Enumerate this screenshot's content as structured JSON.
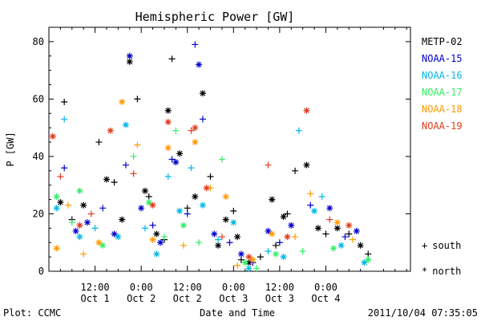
{
  "chart_data": {
    "type": "scatter",
    "title": "Hemispheric Power [GW]",
    "ylabel": "P [GW]",
    "xlabel": "Date and Time",
    "ylim": [
      0,
      85
    ],
    "y_ticks": [
      0,
      20,
      40,
      60,
      80
    ],
    "xlim": [
      "2011-10-01 00:00",
      "2011-10-04 22:00"
    ],
    "x_ticks": [
      {
        "time": "12:00",
        "date": "Oct 1",
        "at": "2011-10-01 12:00"
      },
      {
        "time": "0:00",
        "date": "Oct 2",
        "at": "2011-10-02 00:00"
      },
      {
        "time": "12:00",
        "date": "Oct 2",
        "at": "2011-10-02 12:00"
      },
      {
        "time": "0:00",
        "date": "Oct 3",
        "at": "2011-10-03 00:00"
      },
      {
        "time": "12:00",
        "date": "Oct 3",
        "at": "2011-10-03 12:00"
      },
      {
        "time": "0:00",
        "date": "Oct 4",
        "at": "2011-10-04 00:00"
      }
    ],
    "marker_legend": [
      {
        "symbol": "+",
        "label": "south"
      },
      {
        "symbol": "*",
        "label": "north"
      }
    ],
    "series": [
      {
        "name": "METP-02",
        "color": "#000000",
        "points": [
          {
            "x": "2011-10-01 03:00",
            "y": 24,
            "m": "*"
          },
          {
            "x": "2011-10-01 04:00",
            "y": 59,
            "m": "+"
          },
          {
            "x": "2011-10-01 06:00",
            "y": 18,
            "m": "+"
          },
          {
            "x": "2011-10-01 09:00",
            "y": 23,
            "m": "*"
          },
          {
            "x": "2011-10-01 13:00",
            "y": 45,
            "m": "+"
          },
          {
            "x": "2011-10-01 15:00",
            "y": 32,
            "m": "*"
          },
          {
            "x": "2011-10-01 17:00",
            "y": 31,
            "m": "+"
          },
          {
            "x": "2011-10-01 19:00",
            "y": 18,
            "m": "*"
          },
          {
            "x": "2011-10-01 21:00",
            "y": 73,
            "m": "*"
          },
          {
            "x": "2011-10-01 23:00",
            "y": 60,
            "m": "+"
          },
          {
            "x": "2011-10-02 01:00",
            "y": 28,
            "m": "*"
          },
          {
            "x": "2011-10-02 02:00",
            "y": 26,
            "m": "+"
          },
          {
            "x": "2011-10-02 04:00",
            "y": 13,
            "m": "*"
          },
          {
            "x": "2011-10-02 06:00",
            "y": 11,
            "m": "+"
          },
          {
            "x": "2011-10-02 07:00",
            "y": 56,
            "m": "*"
          },
          {
            "x": "2011-10-02 08:00",
            "y": 74,
            "m": "+"
          },
          {
            "x": "2011-10-02 10:00",
            "y": 41,
            "m": "*"
          },
          {
            "x": "2011-10-02 12:00",
            "y": 22,
            "m": "+"
          },
          {
            "x": "2011-10-02 14:00",
            "y": 26,
            "m": "*"
          },
          {
            "x": "2011-10-02 16:00",
            "y": 62,
            "m": "*"
          },
          {
            "x": "2011-10-02 18:00",
            "y": 33,
            "m": "+"
          },
          {
            "x": "2011-10-02 20:00",
            "y": 9,
            "m": "*"
          },
          {
            "x": "2011-10-02 22:00",
            "y": 18,
            "m": "*"
          },
          {
            "x": "2011-10-03 00:00",
            "y": 21,
            "m": "+"
          },
          {
            "x": "2011-10-03 01:00",
            "y": 12,
            "m": "*"
          },
          {
            "x": "2011-10-03 02:00",
            "y": 4,
            "m": "+"
          },
          {
            "x": "2011-10-03 04:00",
            "y": 3,
            "m": "*"
          },
          {
            "x": "2011-10-03 07:00",
            "y": 5,
            "m": "+"
          },
          {
            "x": "2011-10-03 10:00",
            "y": 25,
            "m": "*"
          },
          {
            "x": "2011-10-03 11:00",
            "y": 9,
            "m": "+"
          },
          {
            "x": "2011-10-03 13:00",
            "y": 19,
            "m": "*"
          },
          {
            "x": "2011-10-03 14:00",
            "y": 20,
            "m": "+"
          },
          {
            "x": "2011-10-03 16:00",
            "y": 35,
            "m": "+"
          },
          {
            "x": "2011-10-03 19:00",
            "y": 37,
            "m": "*"
          },
          {
            "x": "2011-10-03 22:00",
            "y": 15,
            "m": "*"
          },
          {
            "x": "2011-10-04 00:00",
            "y": 13,
            "m": "+"
          },
          {
            "x": "2011-10-04 03:00",
            "y": 15,
            "m": "*"
          },
          {
            "x": "2011-10-04 06:00",
            "y": 13,
            "m": "+"
          },
          {
            "x": "2011-10-04 09:00",
            "y": 9,
            "m": "*"
          },
          {
            "x": "2011-10-04 11:00",
            "y": 6,
            "m": "+"
          }
        ]
      },
      {
        "name": "NOAA-15",
        "color": "#0000cc",
        "points": [
          {
            "x": "2011-10-01 04:00",
            "y": 36,
            "m": "+"
          },
          {
            "x": "2011-10-01 07:00",
            "y": 14,
            "m": "*"
          },
          {
            "x": "2011-10-01 10:00",
            "y": 17,
            "m": "*"
          },
          {
            "x": "2011-10-01 14:00",
            "y": 22,
            "m": "+"
          },
          {
            "x": "2011-10-01 17:00",
            "y": 13,
            "m": "*"
          },
          {
            "x": "2011-10-01 20:00",
            "y": 37,
            "m": "+"
          },
          {
            "x": "2011-10-01 21:00",
            "y": 75,
            "m": "*"
          },
          {
            "x": "2011-10-02 00:00",
            "y": 22,
            "m": "*"
          },
          {
            "x": "2011-10-02 03:00",
            "y": 16,
            "m": "+"
          },
          {
            "x": "2011-10-02 05:00",
            "y": 10,
            "m": "*"
          },
          {
            "x": "2011-10-02 08:00",
            "y": 39,
            "m": "+"
          },
          {
            "x": "2011-10-02 09:00",
            "y": 38,
            "m": "*"
          },
          {
            "x": "2011-10-02 12:00",
            "y": 20,
            "m": "+"
          },
          {
            "x": "2011-10-02 14:00",
            "y": 79,
            "m": "+"
          },
          {
            "x": "2011-10-02 15:00",
            "y": 72,
            "m": "*"
          },
          {
            "x": "2011-10-02 16:00",
            "y": 53,
            "m": "+"
          },
          {
            "x": "2011-10-02 19:00",
            "y": 13,
            "m": "*"
          },
          {
            "x": "2011-10-02 23:00",
            "y": 10,
            "m": "+"
          },
          {
            "x": "2011-10-03 02:00",
            "y": 6,
            "m": "*"
          },
          {
            "x": "2011-10-03 05:00",
            "y": 3,
            "m": "+"
          },
          {
            "x": "2011-10-03 09:00",
            "y": 14,
            "m": "*"
          },
          {
            "x": "2011-10-03 12:00",
            "y": 10,
            "m": "+"
          },
          {
            "x": "2011-10-03 15:00",
            "y": 16,
            "m": "*"
          },
          {
            "x": "2011-10-03 20:00",
            "y": 23,
            "m": "+"
          },
          {
            "x": "2011-10-04 01:00",
            "y": 22,
            "m": "*"
          },
          {
            "x": "2011-10-04 05:00",
            "y": 12,
            "m": "+"
          },
          {
            "x": "2011-10-04 08:00",
            "y": 14,
            "m": "*"
          }
        ]
      },
      {
        "name": "NOAA-16",
        "color": "#00b8e6",
        "points": [
          {
            "x": "2011-10-01 02:00",
            "y": 22,
            "m": "*"
          },
          {
            "x": "2011-10-01 04:00",
            "y": 53,
            "m": "+"
          },
          {
            "x": "2011-10-01 08:00",
            "y": 12,
            "m": "*"
          },
          {
            "x": "2011-10-01 12:00",
            "y": 15,
            "m": "+"
          },
          {
            "x": "2011-10-01 18:00",
            "y": 12,
            "m": "*"
          },
          {
            "x": "2011-10-01 20:00",
            "y": 51,
            "m": "*"
          },
          {
            "x": "2011-10-02 01:00",
            "y": 15,
            "m": "+"
          },
          {
            "x": "2011-10-02 04:00",
            "y": 6,
            "m": "*"
          },
          {
            "x": "2011-10-02 07:00",
            "y": 33,
            "m": "+"
          },
          {
            "x": "2011-10-02 10:00",
            "y": 21,
            "m": "*"
          },
          {
            "x": "2011-10-02 13:00",
            "y": 36,
            "m": "+"
          },
          {
            "x": "2011-10-02 16:00",
            "y": 23,
            "m": "*"
          },
          {
            "x": "2011-10-02 20:00",
            "y": 11,
            "m": "+"
          },
          {
            "x": "2011-10-03 00:00",
            "y": 17,
            "m": "*"
          },
          {
            "x": "2011-10-03 04:00",
            "y": 1,
            "m": "*"
          },
          {
            "x": "2011-10-03 09:00",
            "y": 7,
            "m": "+"
          },
          {
            "x": "2011-10-03 13:00",
            "y": 5,
            "m": "*"
          },
          {
            "x": "2011-10-03 17:00",
            "y": 49,
            "m": "+"
          },
          {
            "x": "2011-10-03 21:00",
            "y": 21,
            "m": "*"
          },
          {
            "x": "2011-10-03 23:00",
            "y": 26,
            "m": "+"
          },
          {
            "x": "2011-10-04 04:00",
            "y": 9,
            "m": "*"
          },
          {
            "x": "2011-10-04 10:00",
            "y": 3,
            "m": "*"
          }
        ]
      },
      {
        "name": "NOAA-17",
        "color": "#33ee66",
        "points": [
          {
            "x": "2011-10-01 02:00",
            "y": 26,
            "m": "*"
          },
          {
            "x": "2011-10-01 06:00",
            "y": 17,
            "m": "+"
          },
          {
            "x": "2011-10-01 08:00",
            "y": 28,
            "m": "*"
          },
          {
            "x": "2011-10-01 14:00",
            "y": 9,
            "m": "*"
          },
          {
            "x": "2011-10-01 22:00",
            "y": 40,
            "m": "+"
          },
          {
            "x": "2011-10-02 02:00",
            "y": 24,
            "m": "*"
          },
          {
            "x": "2011-10-02 06:00",
            "y": 12,
            "m": "+"
          },
          {
            "x": "2011-10-02 09:00",
            "y": 49,
            "m": "+"
          },
          {
            "x": "2011-10-02 11:00",
            "y": 16,
            "m": "*"
          },
          {
            "x": "2011-10-02 15:00",
            "y": 10,
            "m": "+"
          },
          {
            "x": "2011-10-02 21:00",
            "y": 39,
            "m": "+"
          },
          {
            "x": "2011-10-03 03:00",
            "y": 3,
            "m": "*"
          },
          {
            "x": "2011-10-03 06:00",
            "y": 1,
            "m": "+"
          },
          {
            "x": "2011-10-03 11:00",
            "y": 6,
            "m": "*"
          },
          {
            "x": "2011-10-03 18:00",
            "y": 7,
            "m": "+"
          },
          {
            "x": "2011-10-04 02:00",
            "y": 8,
            "m": "*"
          },
          {
            "x": "2011-10-04 11:00",
            "y": 4,
            "m": "*"
          }
        ]
      },
      {
        "name": "NOAA-18",
        "color": "#ff9900",
        "points": [
          {
            "x": "2011-10-01 02:00",
            "y": 8,
            "m": "*"
          },
          {
            "x": "2011-10-01 05:00",
            "y": 23,
            "m": "+"
          },
          {
            "x": "2011-10-01 09:00",
            "y": 6,
            "m": "+"
          },
          {
            "x": "2011-10-01 13:00",
            "y": 10,
            "m": "*"
          },
          {
            "x": "2011-10-01 19:00",
            "y": 59,
            "m": "*"
          },
          {
            "x": "2011-10-01 23:00",
            "y": 44,
            "m": "+"
          },
          {
            "x": "2011-10-02 03:00",
            "y": 11,
            "m": "*"
          },
          {
            "x": "2011-10-02 07:00",
            "y": 43,
            "m": "*"
          },
          {
            "x": "2011-10-02 11:00",
            "y": 9,
            "m": "+"
          },
          {
            "x": "2011-10-02 14:00",
            "y": 45,
            "m": "*"
          },
          {
            "x": "2011-10-02 18:00",
            "y": 29,
            "m": "+"
          },
          {
            "x": "2011-10-02 22:00",
            "y": 26,
            "m": "*"
          },
          {
            "x": "2011-10-03 01:00",
            "y": 2,
            "m": "+"
          },
          {
            "x": "2011-10-03 05:00",
            "y": 4,
            "m": "*"
          },
          {
            "x": "2011-10-03 10:00",
            "y": 13,
            "m": "*"
          },
          {
            "x": "2011-10-03 16:00",
            "y": 12,
            "m": "+"
          },
          {
            "x": "2011-10-03 20:00",
            "y": 27,
            "m": "+"
          },
          {
            "x": "2011-10-04 03:00",
            "y": 17,
            "m": "*"
          },
          {
            "x": "2011-10-04 07:00",
            "y": 11,
            "m": "+"
          }
        ]
      },
      {
        "name": "NOAA-19",
        "color": "#e03c1e",
        "points": [
          {
            "x": "2011-10-01 01:00",
            "y": 47,
            "m": "*"
          },
          {
            "x": "2011-10-01 03:00",
            "y": 33,
            "m": "+"
          },
          {
            "x": "2011-10-01 08:00",
            "y": 16,
            "m": "*"
          },
          {
            "x": "2011-10-01 11:00",
            "y": 20,
            "m": "+"
          },
          {
            "x": "2011-10-01 16:00",
            "y": 49,
            "m": "*"
          },
          {
            "x": "2011-10-01 22:00",
            "y": 34,
            "m": "+"
          },
          {
            "x": "2011-10-02 03:00",
            "y": 23,
            "m": "*"
          },
          {
            "x": "2011-10-02 07:00",
            "y": 52,
            "m": "*"
          },
          {
            "x": "2011-10-02 13:00",
            "y": 49,
            "m": "+"
          },
          {
            "x": "2011-10-02 14:00",
            "y": 50,
            "m": "*"
          },
          {
            "x": "2011-10-02 17:00",
            "y": 29,
            "m": "*"
          },
          {
            "x": "2011-10-02 21:00",
            "y": 12,
            "m": "+"
          },
          {
            "x": "2011-10-03 04:00",
            "y": 5,
            "m": "*"
          },
          {
            "x": "2011-10-03 09:00",
            "y": 37,
            "m": "+"
          },
          {
            "x": "2011-10-03 14:00",
            "y": 12,
            "m": "*"
          },
          {
            "x": "2011-10-03 19:00",
            "y": 56,
            "m": "*"
          },
          {
            "x": "2011-10-04 01:00",
            "y": 18,
            "m": "+"
          },
          {
            "x": "2011-10-04 06:00",
            "y": 16,
            "m": "*"
          }
        ]
      }
    ]
  },
  "footer": {
    "left": "Plot: CCMC",
    "right": "2011/10/04 07:35:05"
  }
}
